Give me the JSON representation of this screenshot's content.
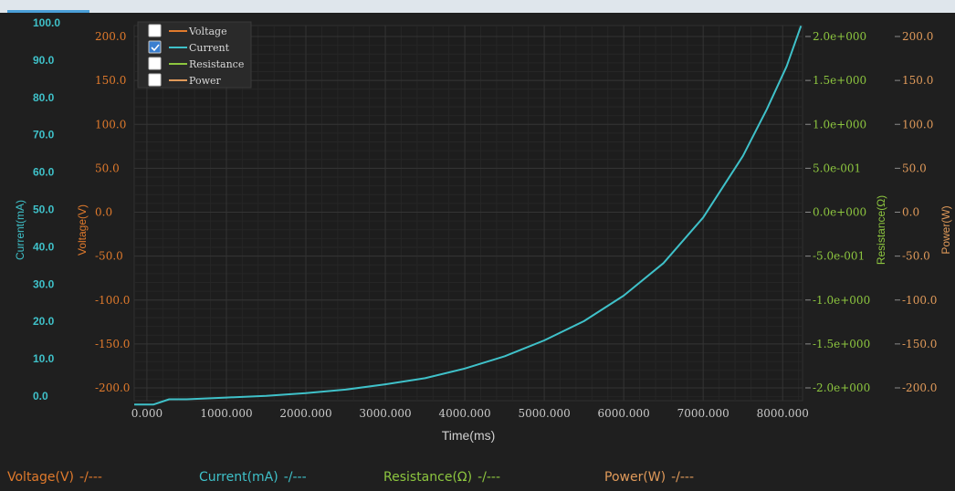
{
  "colors": {
    "background": "#1f1f1f",
    "voltage": "#e07a2c",
    "current": "#3fc1c9",
    "resistance": "#8dc63f",
    "power": "#e09a5a"
  },
  "legend": {
    "items": [
      {
        "label": "Voltage",
        "checked": false,
        "color": "#e07a2c"
      },
      {
        "label": "Current",
        "checked": true,
        "color": "#3fc1c9"
      },
      {
        "label": "Resistance",
        "checked": false,
        "color": "#8dc63f"
      },
      {
        "label": "Power",
        "checked": false,
        "color": "#e09a5a"
      }
    ]
  },
  "readouts": [
    {
      "label": "Voltage(V)",
      "value": "-/---",
      "color": "#e07a2c"
    },
    {
      "label": "Current(mA)",
      "value": "-/---",
      "color": "#3fc1c9"
    },
    {
      "label": "Resistance(Ω)",
      "value": "-/---",
      "color": "#8dc63f"
    },
    {
      "label": "Power(W)",
      "value": "-/---",
      "color": "#e09a5a"
    }
  ],
  "chart_data": {
    "type": "line",
    "xlabel": "Time(ms)",
    "xlim": [
      -160,
      8250
    ],
    "x_ticks": [
      0,
      1000,
      2000,
      3000,
      4000,
      5000,
      6000,
      7000,
      8000
    ],
    "x_tick_labels": [
      "0.000",
      "1000.000",
      "2000.000",
      "3000.000",
      "4000.000",
      "5000.000",
      "6000.000",
      "7000.000",
      "8000.000"
    ],
    "grid": true,
    "legend_position": "top-left",
    "axes": {
      "current": {
        "label": "Current(mA)",
        "tick_labels": [
          "0.0",
          "10.0",
          "20.0",
          "30.0",
          "40.0",
          "50.0",
          "60.0",
          "70.0",
          "80.0",
          "90.0",
          "100.0"
        ]
      },
      "voltage": {
        "label": "Voltage(V)",
        "tick_labels": [
          "-200.0",
          "-150.0",
          "-100.0",
          "-50.0",
          "0.0",
          "50.0",
          "100.0",
          "150.0",
          "200.0"
        ]
      },
      "resistance": {
        "label": "Resistance(Ω)",
        "tick_labels": [
          "-2.0e+000",
          "-1.5e+000",
          "-1.0e+000",
          "-5.0e-001",
          "0.0e+000",
          "5.0e-001",
          "1.0e+000",
          "1.5e+000",
          "2.0e+000"
        ]
      },
      "power": {
        "label": "Power(W)",
        "tick_labels": [
          "-200.0",
          "-150.0",
          "-100.0",
          "-50.0",
          "0.0",
          "50.0",
          "100.0",
          "150.0",
          "200.0"
        ]
      }
    },
    "series": [
      {
        "name": "Current",
        "axis": "voltage",
        "x": [
          -160,
          80,
          280,
          500,
          1000,
          1500,
          2000,
          2500,
          3000,
          3500,
          4000,
          4500,
          5000,
          5500,
          6000,
          6500,
          7000,
          7500,
          7800,
          8050,
          8230
        ],
        "y": [
          -219,
          -219,
          -213,
          -213,
          -211,
          -209,
          -206,
          -202,
          -196,
          -189,
          -178,
          -164,
          -146,
          -124,
          -95,
          -58,
          -6,
          64,
          117,
          166,
          212
        ]
      }
    ]
  }
}
